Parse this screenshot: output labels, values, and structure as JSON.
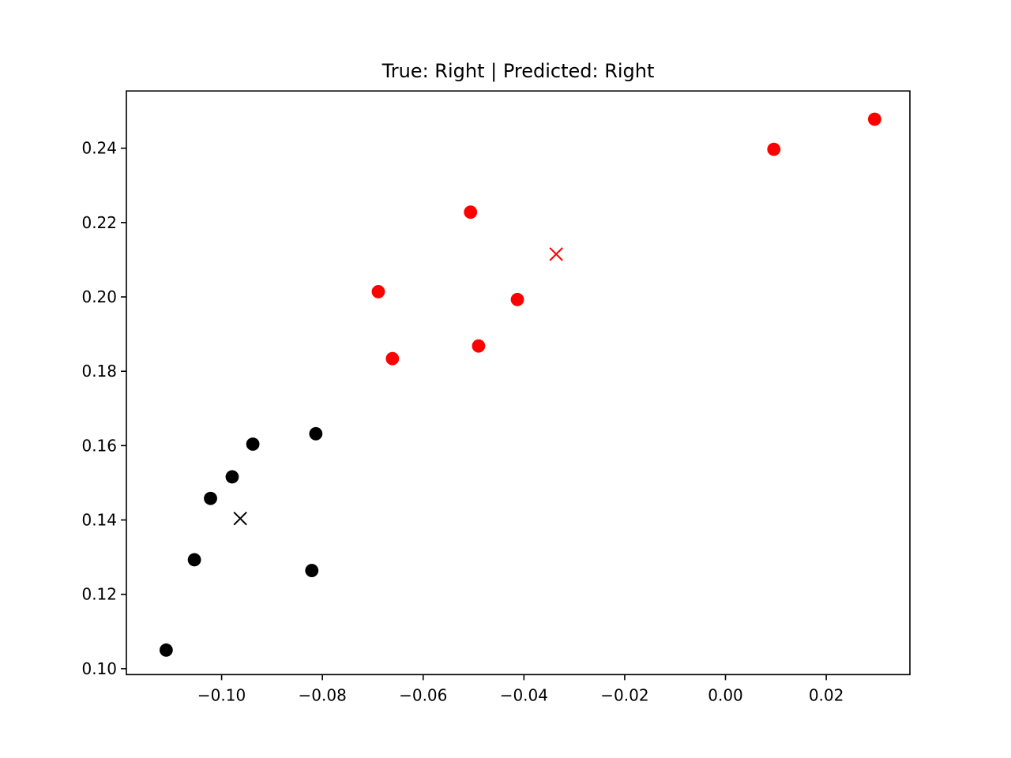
{
  "chart_data": {
    "type": "scatter",
    "title": "True: Right | Predicted: Right",
    "xlabel": "",
    "ylabel": "",
    "xlim": [
      -0.1189,
      0.0366
    ],
    "ylim": [
      0.0984,
      0.2554
    ],
    "xticks": [
      -0.1,
      -0.08,
      -0.06,
      -0.04,
      -0.02,
      0.0,
      0.02
    ],
    "xtick_labels": [
      "−0.10",
      "−0.08",
      "−0.06",
      "−0.04",
      "−0.02",
      "0.00",
      "0.02"
    ],
    "yticks": [
      0.1,
      0.12,
      0.14,
      0.16,
      0.18,
      0.2,
      0.22,
      0.24
    ],
    "ytick_labels": [
      "0.10",
      "0.12",
      "0.14",
      "0.16",
      "0.18",
      "0.20",
      "0.22",
      "0.24"
    ],
    "grid": false,
    "series": [
      {
        "color": "#ff0000",
        "marker": "circle",
        "points": [
          [
            0.0296,
            0.2478
          ],
          [
            0.0096,
            0.2397
          ],
          [
            -0.0506,
            0.2228
          ],
          [
            -0.0689,
            0.2014
          ],
          [
            -0.0413,
            0.1993
          ],
          [
            -0.049,
            0.1868
          ],
          [
            -0.0661,
            0.1834
          ]
        ]
      },
      {
        "color": "#000000",
        "marker": "circle",
        "points": [
          [
            -0.0813,
            0.1632
          ],
          [
            -0.0938,
            0.1604
          ],
          [
            -0.0979,
            0.1516
          ],
          [
            -0.1022,
            0.1458
          ],
          [
            -0.1054,
            0.1293
          ],
          [
            -0.0821,
            0.1264
          ],
          [
            -0.111,
            0.105
          ]
        ]
      },
      {
        "color": "#ff0000",
        "marker": "x",
        "points": [
          [
            -0.0336,
            0.2115
          ]
        ]
      },
      {
        "color": "#000000",
        "marker": "x",
        "points": [
          [
            -0.0963,
            0.1404
          ]
        ]
      }
    ]
  }
}
